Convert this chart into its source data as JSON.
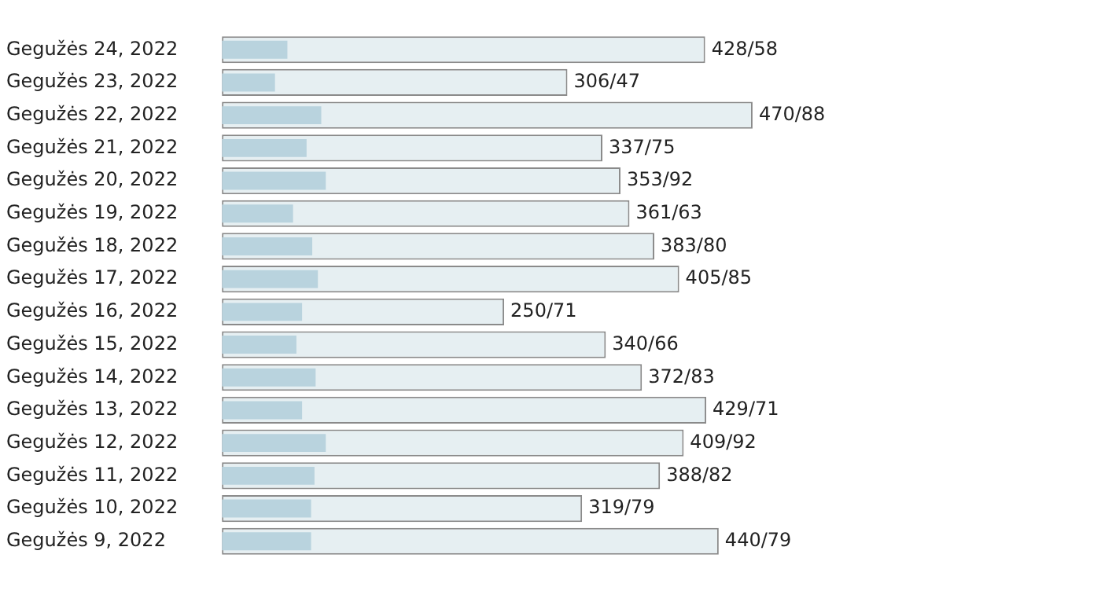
{
  "chart_data": {
    "type": "bar",
    "orientation": "horizontal",
    "categories": [
      "Gegužės 24, 2022",
      "Gegužės 23, 2022",
      "Gegužės 22, 2022",
      "Gegužės 21, 2022",
      "Gegužės 20, 2022",
      "Gegužės 19, 2022",
      "Gegužės 18, 2022",
      "Gegužės 17, 2022",
      "Gegužės 16, 2022",
      "Gegužės 15, 2022",
      "Gegužės 14, 2022",
      "Gegužės 13, 2022",
      "Gegužės 12, 2022",
      "Gegužės 11, 2022",
      "Gegužės 10, 2022",
      "Gegužės 9, 2022"
    ],
    "series": [
      {
        "color": "#e6eff2",
        "values": [
          428,
          306,
          470,
          337,
          353,
          361,
          383,
          405,
          250,
          340,
          372,
          429,
          409,
          388,
          319,
          440
        ],
        "value_labels": [
          "428/58",
          "306/47",
          "470/88",
          "337/75",
          "353/92",
          "361/63",
          "383/80",
          "405/85",
          "250/71",
          "340/66",
          "372/83",
          "429/71",
          "409/92",
          "388/82",
          "319/79",
          "440/79"
        ]
      },
      {
        "color": "#b9d3de",
        "values": [
          58,
          47,
          88,
          75,
          92,
          63,
          80,
          85,
          71,
          66,
          83,
          71,
          92,
          82,
          79,
          79
        ]
      }
    ],
    "legend": false,
    "tick_labels": "y"
  }
}
